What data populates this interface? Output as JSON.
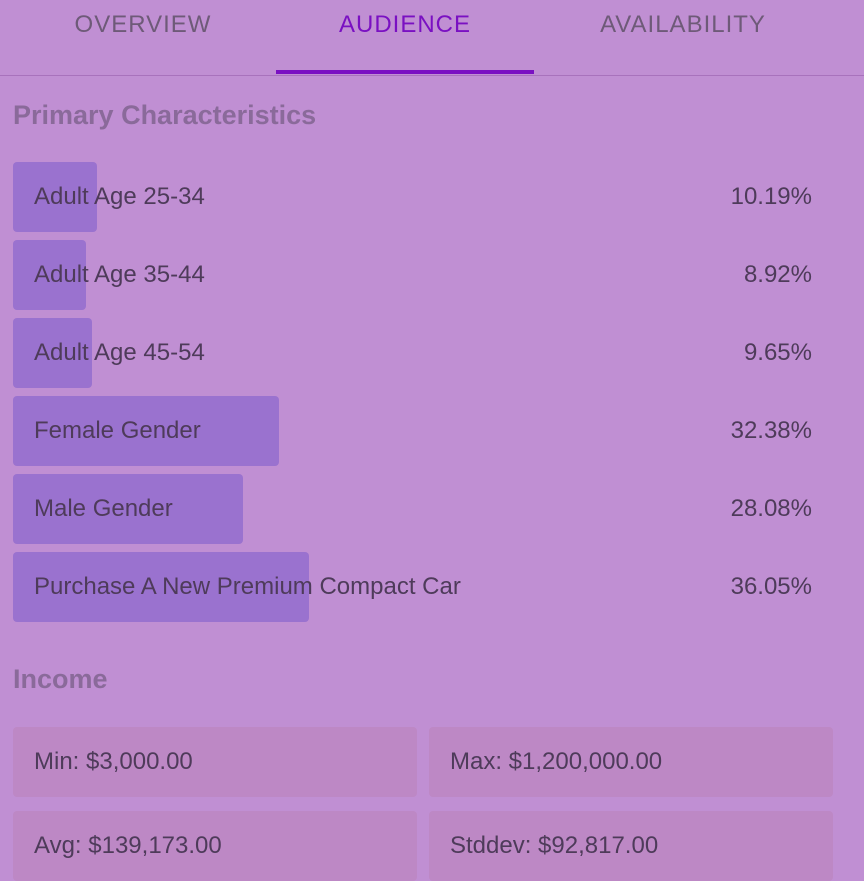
{
  "tabs": [
    {
      "label": "OVERVIEW",
      "active": false
    },
    {
      "label": "AUDIENCE",
      "active": true
    },
    {
      "label": "AVAILABILITY",
      "active": false
    }
  ],
  "primary": {
    "title": "Primary Characteristics",
    "items": [
      {
        "label": "Adult Age 25-34",
        "value": "10.19%",
        "fraction": 0.1019
      },
      {
        "label": "Adult Age 35-44",
        "value": "8.92%",
        "fraction": 0.0892
      },
      {
        "label": "Adult Age 45-54",
        "value": "9.65%",
        "fraction": 0.0965
      },
      {
        "label": "Female Gender",
        "value": "32.38%",
        "fraction": 0.3238
      },
      {
        "label": "Male Gender",
        "value": "28.08%",
        "fraction": 0.2808
      },
      {
        "label": "Purchase A New Premium Compact Car",
        "value": "36.05%",
        "fraction": 0.3605
      }
    ]
  },
  "income": {
    "title": "Income",
    "min": "Min: $3,000.00",
    "max": "Max: $1,200,000.00",
    "avg": "Avg: $139,173.00",
    "stddev": "Stddev: $92,817.00"
  }
}
